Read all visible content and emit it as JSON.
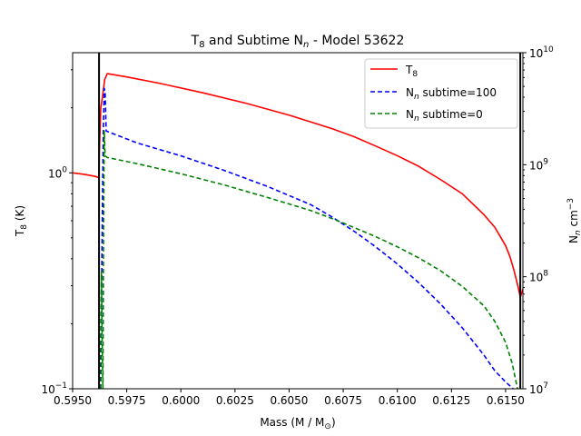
{
  "chart_data": {
    "type": "line",
    "title": {
      "main": "T",
      "sub": "8",
      "mid": " and Subtime N",
      "italic": "n",
      "tail": " - Model 53622"
    },
    "xlabel": {
      "main": "Mass (M / M",
      "sub": "⊙",
      "tail": ")"
    },
    "ylabel_left": {
      "main": "T",
      "sub": "8",
      "tail": " (K)"
    },
    "ylabel_right": {
      "main": "N",
      "sub": "n",
      "mid": " cm",
      "sup": "−3"
    },
    "xlim": [
      0.595,
      0.6158
    ],
    "ylim_left": [
      0.1,
      3.6
    ],
    "ylim_right": [
      10000000,
      10000000000
    ],
    "yscale": "log",
    "x_ticks": [
      "0.5950",
      "0.5975",
      "0.6000",
      "0.6025",
      "0.6050",
      "0.6075",
      "0.6100",
      "0.6125",
      "0.6150"
    ],
    "y_ticks_left": [
      {
        "value": 0.1,
        "base": "10",
        "exp": "−1"
      },
      {
        "value": 1,
        "base": "10",
        "exp": "0"
      }
    ],
    "y_ticks_right": [
      {
        "value": 10000000,
        "base": "10",
        "exp": "7"
      },
      {
        "value": 100000000,
        "base": "10",
        "exp": "8"
      },
      {
        "value": 1000000000,
        "base": "10",
        "exp": "9"
      },
      {
        "value": 10000000000,
        "base": "10",
        "exp": "10"
      }
    ],
    "vlines": [
      0.59622,
      0.61568
    ],
    "series": [
      {
        "name": "T8",
        "legend": {
          "main": "T",
          "sub": "8",
          "tail": ""
        },
        "axis": "left",
        "color": "#ff0000",
        "dash": "solid",
        "x": [
          0.595,
          0.5955,
          0.596,
          0.59622,
          0.59623,
          0.5963,
          0.59638,
          0.59648,
          0.5966,
          0.5975,
          0.599,
          0.601,
          0.603,
          0.605,
          0.607,
          0.608,
          0.609,
          0.61,
          0.611,
          0.612,
          0.613,
          0.614,
          0.6145,
          0.615,
          0.6152,
          0.6154,
          0.6156,
          0.61568,
          0.6158
        ],
        "y": [
          1.0,
          0.985,
          0.965,
          0.95,
          1.2,
          2.0,
          2.25,
          2.7,
          2.88,
          2.78,
          2.6,
          2.35,
          2.1,
          1.85,
          1.6,
          1.47,
          1.33,
          1.2,
          1.07,
          0.93,
          0.8,
          0.64,
          0.56,
          0.46,
          0.41,
          0.35,
          0.29,
          0.265,
          0.29
        ]
      },
      {
        "name": "Nn subtime=100",
        "legend": {
          "main": "N",
          "sub": "n",
          "tail": " subtime=100"
        },
        "axis": "right",
        "color": "#0000ff",
        "dash": "5,3",
        "x": [
          0.5963,
          0.59634,
          0.59638,
          0.59642,
          0.59646,
          0.5965,
          0.59655,
          0.598,
          0.6,
          0.602,
          0.604,
          0.606,
          0.607,
          0.608,
          0.609,
          0.61,
          0.611,
          0.612,
          0.613,
          0.614,
          0.6145,
          0.615,
          0.61535
        ],
        "y": [
          10000000,
          80000000,
          500000000,
          2000000000,
          4800000000,
          4500000000,
          2000000000,
          1560000000,
          1200000000,
          890000000,
          640000000,
          440000000,
          340000000,
          255000000,
          185000000,
          130000000,
          88000000,
          57000000,
          35000000,
          20000000,
          14500000,
          11500000,
          10000000
        ]
      },
      {
        "name": "Nn subtime=0",
        "legend": {
          "main": "N",
          "sub": "n",
          "tail": " subtime=0"
        },
        "axis": "right",
        "color": "#008000",
        "dash": "5,3",
        "x": [
          0.59628,
          0.5963,
          0.59633,
          0.59636,
          0.5964,
          0.59643,
          0.59646,
          0.5965,
          0.5966,
          0.598,
          0.6,
          0.602,
          0.604,
          0.606,
          0.607,
          0.608,
          0.609,
          0.61,
          0.611,
          0.612,
          0.613,
          0.614,
          0.6145,
          0.615,
          0.6153,
          0.61555
        ],
        "y": [
          10000000,
          30000000,
          110000000,
          30000000,
          10000000,
          300000000,
          2000000000,
          1200000000,
          1160000000,
          1020000000,
          830000000,
          660000000,
          510000000,
          390000000,
          330000000,
          275000000,
          228000000,
          185000000,
          147000000,
          113000000,
          82000000,
          55000000,
          40000000,
          26000000,
          17000000,
          10000000
        ]
      }
    ],
    "legend_position": "top-right"
  }
}
